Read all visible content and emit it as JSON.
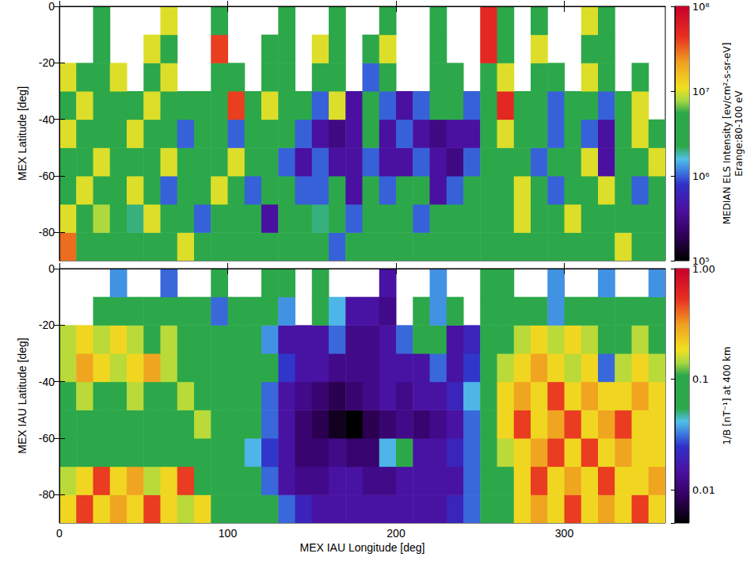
{
  "chart_data": [
    {
      "type": "heatmap",
      "ylabel": "MEX Latitude [deg]",
      "xlim": [
        0,
        360
      ],
      "xticks": [
        0,
        100,
        200,
        300
      ],
      "ylim": [
        -90,
        0
      ],
      "yticks": [
        -80,
        -60,
        -40,
        -20,
        0
      ],
      "tick_labels": "y",
      "x": [
        5,
        15,
        25,
        35,
        45,
        55,
        65,
        75,
        85,
        95,
        105,
        115,
        125,
        135,
        145,
        155,
        165,
        175,
        185,
        195,
        205,
        215,
        225,
        235,
        245,
        255,
        265,
        275,
        285,
        295,
        305,
        315,
        325,
        335,
        345,
        355
      ],
      "y": [
        -85,
        -75,
        -65,
        -55,
        -45,
        -35,
        -25,
        -15,
        -5
      ],
      "cells": [
        [
          30000000.0,
          3000000.0,
          3000000.0,
          3000000.0,
          4000000.0,
          3000000.0,
          3000000.0,
          10000000.0,
          3000000.0,
          3000000.0,
          3000000.0,
          3000000.0,
          3000000.0,
          3000000.0,
          3000000.0,
          3000000.0,
          1000000.0,
          3000000.0,
          3000000.0,
          3000000.0,
          3000000.0,
          3000000.0,
          3000000.0,
          3000000.0,
          3000000.0,
          3000000.0,
          3000000.0,
          3000000.0,
          3000000.0,
          3000000.0,
          3000000.0,
          3000000.0,
          3000000.0,
          10000000.0,
          3000000.0,
          3000000.0
        ],
        [
          10000000.0,
          3000000.0,
          8000000.0,
          3000000.0,
          2000000.0,
          10000000.0,
          3000000.0,
          3000000.0,
          1000000.0,
          3000000.0,
          3000000.0,
          3000000.0,
          400000.0,
          3000000.0,
          3000000.0,
          2000000.0,
          3000000.0,
          1000000.0,
          3000000.0,
          3000000.0,
          3000000.0,
          1000000.0,
          3000000.0,
          3000000.0,
          3000000.0,
          3000000.0,
          3000000.0,
          10000000.0,
          3000000.0,
          3000000.0,
          10000000.0,
          3000000.0,
          3000000.0,
          4000000.0,
          3000000.0,
          3000000.0
        ],
        [
          3000000.0,
          10000000.0,
          3000000.0,
          3000000.0,
          10000000.0,
          3000000.0,
          1000000.0,
          3000000.0,
          3000000.0,
          10000000.0,
          3000000.0,
          1000000.0,
          3000000.0,
          3000000.0,
          1000000.0,
          1000000.0,
          3000000.0,
          400000.0,
          3000000.0,
          1000000.0,
          3000000.0,
          3000000.0,
          400000.0,
          1000000.0,
          3000000.0,
          3000000.0,
          3000000.0,
          10000000.0,
          3000000.0,
          1000000.0,
          3000000.0,
          3000000.0,
          10000000.0,
          3000000.0,
          1000000.0,
          3000000.0
        ],
        [
          3000000.0,
          3000000.0,
          10000000.0,
          3000000.0,
          3000000.0,
          3000000.0,
          10000000.0,
          3000000.0,
          3000000.0,
          3000000.0,
          10000000.0,
          3000000.0,
          3000000.0,
          1000000.0,
          400000.0,
          1000000.0,
          400000.0,
          400000.0,
          1000000.0,
          400000.0,
          400000.0,
          1000000.0,
          400000.0,
          300000.0,
          1000000.0,
          3000000.0,
          3000000.0,
          3000000.0,
          1000000.0,
          3000000.0,
          3000000.0,
          10000000.0,
          400000.0,
          3000000.0,
          3000000.0,
          10000000.0
        ],
        [
          10000000.0,
          3000000.0,
          3000000.0,
          3000000.0,
          10000000.0,
          3000000.0,
          3000000.0,
          1000000.0,
          3000000.0,
          3000000.0,
          1000000.0,
          3000000.0,
          3000000.0,
          3000000.0,
          1000000.0,
          400000.0,
          300000.0,
          400000.0,
          3000000.0,
          400000.0,
          1000000.0,
          400000.0,
          300000.0,
          400000.0,
          400000.0,
          3000000.0,
          10000000.0,
          3000000.0,
          3000000.0,
          1000000.0,
          3000000.0,
          1000000.0,
          400000.0,
          3000000.0,
          10000000.0,
          3000000.0
        ],
        [
          3000000.0,
          10000000.0,
          3000000.0,
          3000000.0,
          3000000.0,
          10000000.0,
          3000000.0,
          3000000.0,
          3000000.0,
          3000000.0,
          40000000.0,
          3000000.0,
          10000000.0,
          3000000.0,
          3000000.0,
          1000000.0,
          10000000.0,
          400000.0,
          3000000.0,
          1000000.0,
          400000.0,
          1000000.0,
          3000000.0,
          3000000.0,
          1000000.0,
          3000000.0,
          50000000.0,
          3000000.0,
          3000000.0,
          1000000.0,
          3000000.0,
          3000000.0,
          1000000.0,
          3000000.0,
          10000000.0,
          null
        ],
        [
          10000000.0,
          3000000.0,
          3000000.0,
          10000000.0,
          null,
          3000000.0,
          10000000.0,
          null,
          null,
          3000000.0,
          3000000.0,
          null,
          3000000.0,
          3000000.0,
          null,
          3000000.0,
          3000000.0,
          null,
          1000000.0,
          3000000.0,
          null,
          null,
          3000000.0,
          3000000.0,
          null,
          3000000.0,
          10000000.0,
          null,
          3000000.0,
          3000000.0,
          null,
          10000000.0,
          3000000.0,
          null,
          3000000.0,
          null
        ],
        [
          null,
          null,
          3000000.0,
          null,
          null,
          10000000.0,
          3000000.0,
          null,
          null,
          40000000.0,
          null,
          null,
          3000000.0,
          3000000.0,
          null,
          10000000.0,
          3000000.0,
          null,
          3000000.0,
          10000000.0,
          null,
          null,
          3000000.0,
          null,
          null,
          50000000.0,
          3000000.0,
          null,
          10000000.0,
          null,
          null,
          3000000.0,
          3000000.0,
          null,
          null,
          null
        ],
        [
          null,
          null,
          3000000.0,
          null,
          null,
          null,
          10000000.0,
          null,
          null,
          3000000.0,
          null,
          null,
          null,
          3000000.0,
          null,
          null,
          3000000.0,
          null,
          null,
          3000000.0,
          null,
          null,
          3000000.0,
          null,
          null,
          50000000.0,
          3000000.0,
          null,
          3000000.0,
          null,
          null,
          10000000.0,
          3000000.0,
          null,
          null,
          null
        ]
      ],
      "colorbar_label": [
        "MEDIAN ELS Intensity [ev/cm²-s-sr-eV]",
        "Erange:80-100 eV"
      ],
      "colorbar_lim": [
        100000,
        100000000
      ],
      "colorbar_ticks": [
        {
          "value": 100000,
          "label": "10⁵"
        },
        {
          "value": 1000000,
          "label": "10⁶"
        },
        {
          "value": 10000000,
          "label": "10⁷"
        },
        {
          "value": 100000000,
          "label": "10⁸"
        }
      ]
    },
    {
      "type": "heatmap",
      "xlabel": "MEX IAU Longitude [deg]",
      "ylabel": "MEX IAU Latitude [deg]",
      "xlim": [
        0,
        360
      ],
      "xticks": [
        0,
        100,
        200,
        300
      ],
      "ylim": [
        -90,
        0
      ],
      "yticks": [
        -80,
        -60,
        -40,
        -20,
        0
      ],
      "x": [
        5,
        15,
        25,
        35,
        45,
        55,
        65,
        75,
        85,
        95,
        105,
        115,
        125,
        135,
        145,
        155,
        165,
        175,
        185,
        195,
        205,
        215,
        225,
        235,
        245,
        255,
        265,
        275,
        285,
        295,
        305,
        315,
        325,
        335,
        345,
        355
      ],
      "y": [
        -85,
        -75,
        -65,
        -55,
        -45,
        -35,
        -25,
        -15,
        -5
      ],
      "cells": [
        [
          0.2,
          0.5,
          0.2,
          0.3,
          0.2,
          0.5,
          0.2,
          0.15,
          0.2,
          0.1,
          0.06,
          0.06,
          0.06,
          0.03,
          0.02,
          0.015,
          0.015,
          0.015,
          0.015,
          0.015,
          0.015,
          0.015,
          0.015,
          0.02,
          0.03,
          0.06,
          0.1,
          0.2,
          0.3,
          0.2,
          0.5,
          0.2,
          0.3,
          0.2,
          0.5,
          0.2
        ],
        [
          0.15,
          0.2,
          0.5,
          0.2,
          0.3,
          0.15,
          0.2,
          0.5,
          0.1,
          0.06,
          0.06,
          0.06,
          0.03,
          0.015,
          0.012,
          0.012,
          0.015,
          0.015,
          0.012,
          0.012,
          0.015,
          0.015,
          0.015,
          0.015,
          0.03,
          0.06,
          0.1,
          0.2,
          0.5,
          0.2,
          0.3,
          0.2,
          0.5,
          0.2,
          0.2,
          0.3
        ],
        [
          0.06,
          0.1,
          0.06,
          0.06,
          0.1,
          0.06,
          0.1,
          0.06,
          0.06,
          0.06,
          0.06,
          0.04,
          0.025,
          0.015,
          0.01,
          0.01,
          0.012,
          0.01,
          0.01,
          0.04,
          0.06,
          0.015,
          0.015,
          0.02,
          0.03,
          0.06,
          0.15,
          0.2,
          0.3,
          0.5,
          0.2,
          0.5,
          0.2,
          0.3,
          0.2,
          0.2
        ],
        [
          0.06,
          0.06,
          0.06,
          0.1,
          0.06,
          0.06,
          0.06,
          0.06,
          0.15,
          0.06,
          0.06,
          0.06,
          0.03,
          0.015,
          0.01,
          0.008,
          0.006,
          0.005,
          0.008,
          0.01,
          0.012,
          0.01,
          0.012,
          0.015,
          0.03,
          0.06,
          0.2,
          0.5,
          0.2,
          0.3,
          0.5,
          0.2,
          0.3,
          0.5,
          0.2,
          0.2
        ],
        [
          0.1,
          0.15,
          0.06,
          0.06,
          0.15,
          0.1,
          0.06,
          0.15,
          0.06,
          0.06,
          0.06,
          0.1,
          0.03,
          0.015,
          0.012,
          0.01,
          0.008,
          0.01,
          0.012,
          0.015,
          0.012,
          0.015,
          0.015,
          0.02,
          0.04,
          0.06,
          0.2,
          0.3,
          0.2,
          0.5,
          0.2,
          0.3,
          0.2,
          0.2,
          0.3,
          0.2
        ],
        [
          0.15,
          0.3,
          0.2,
          0.15,
          0.2,
          0.3,
          0.15,
          0.06,
          0.06,
          0.06,
          0.06,
          0.06,
          0.1,
          0.025,
          0.015,
          0.015,
          0.012,
          0.012,
          0.012,
          0.015,
          0.015,
          0.015,
          0.03,
          0.015,
          0.025,
          0.06,
          0.15,
          0.2,
          0.3,
          0.2,
          0.15,
          0.2,
          0.03,
          0.15,
          0.2,
          0.15
        ],
        [
          0.15,
          0.2,
          0.15,
          0.2,
          0.15,
          0.06,
          0.15,
          0.06,
          0.06,
          0.06,
          0.06,
          0.06,
          0.035,
          0.015,
          0.015,
          0.015,
          0.03,
          0.012,
          0.012,
          0.015,
          0.03,
          0.06,
          0.06,
          0.015,
          0.02,
          0.06,
          0.1,
          0.15,
          0.2,
          0.15,
          0.2,
          0.15,
          0.06,
          0.06,
          0.15,
          0.1
        ],
        [
          null,
          null,
          0.06,
          0.06,
          0.06,
          0.06,
          0.06,
          0.06,
          0.06,
          0.03,
          0.06,
          0.06,
          0.06,
          0.035,
          null,
          0.06,
          0.04,
          0.015,
          0.015,
          0.012,
          null,
          0.06,
          0.035,
          0.06,
          null,
          0.06,
          0.06,
          0.06,
          0.06,
          0.035,
          0.06,
          0.06,
          0.06,
          0.06,
          0.06,
          0.06
        ],
        [
          null,
          null,
          null,
          0.035,
          null,
          null,
          0.03,
          null,
          null,
          0.06,
          null,
          null,
          0.06,
          0.06,
          null,
          0.06,
          null,
          null,
          null,
          0.015,
          null,
          null,
          0.035,
          null,
          null,
          0.06,
          0.06,
          null,
          null,
          0.035,
          null,
          null,
          0.035,
          null,
          null,
          0.035
        ]
      ],
      "colorbar_label": "1/B [nT⁻¹] at 400 km",
      "colorbar_lim": [
        0.005,
        1
      ],
      "colorbar_ticks": [
        0.01,
        0.1,
        {
          "value": 1,
          "label": "1.00"
        }
      ]
    }
  ]
}
